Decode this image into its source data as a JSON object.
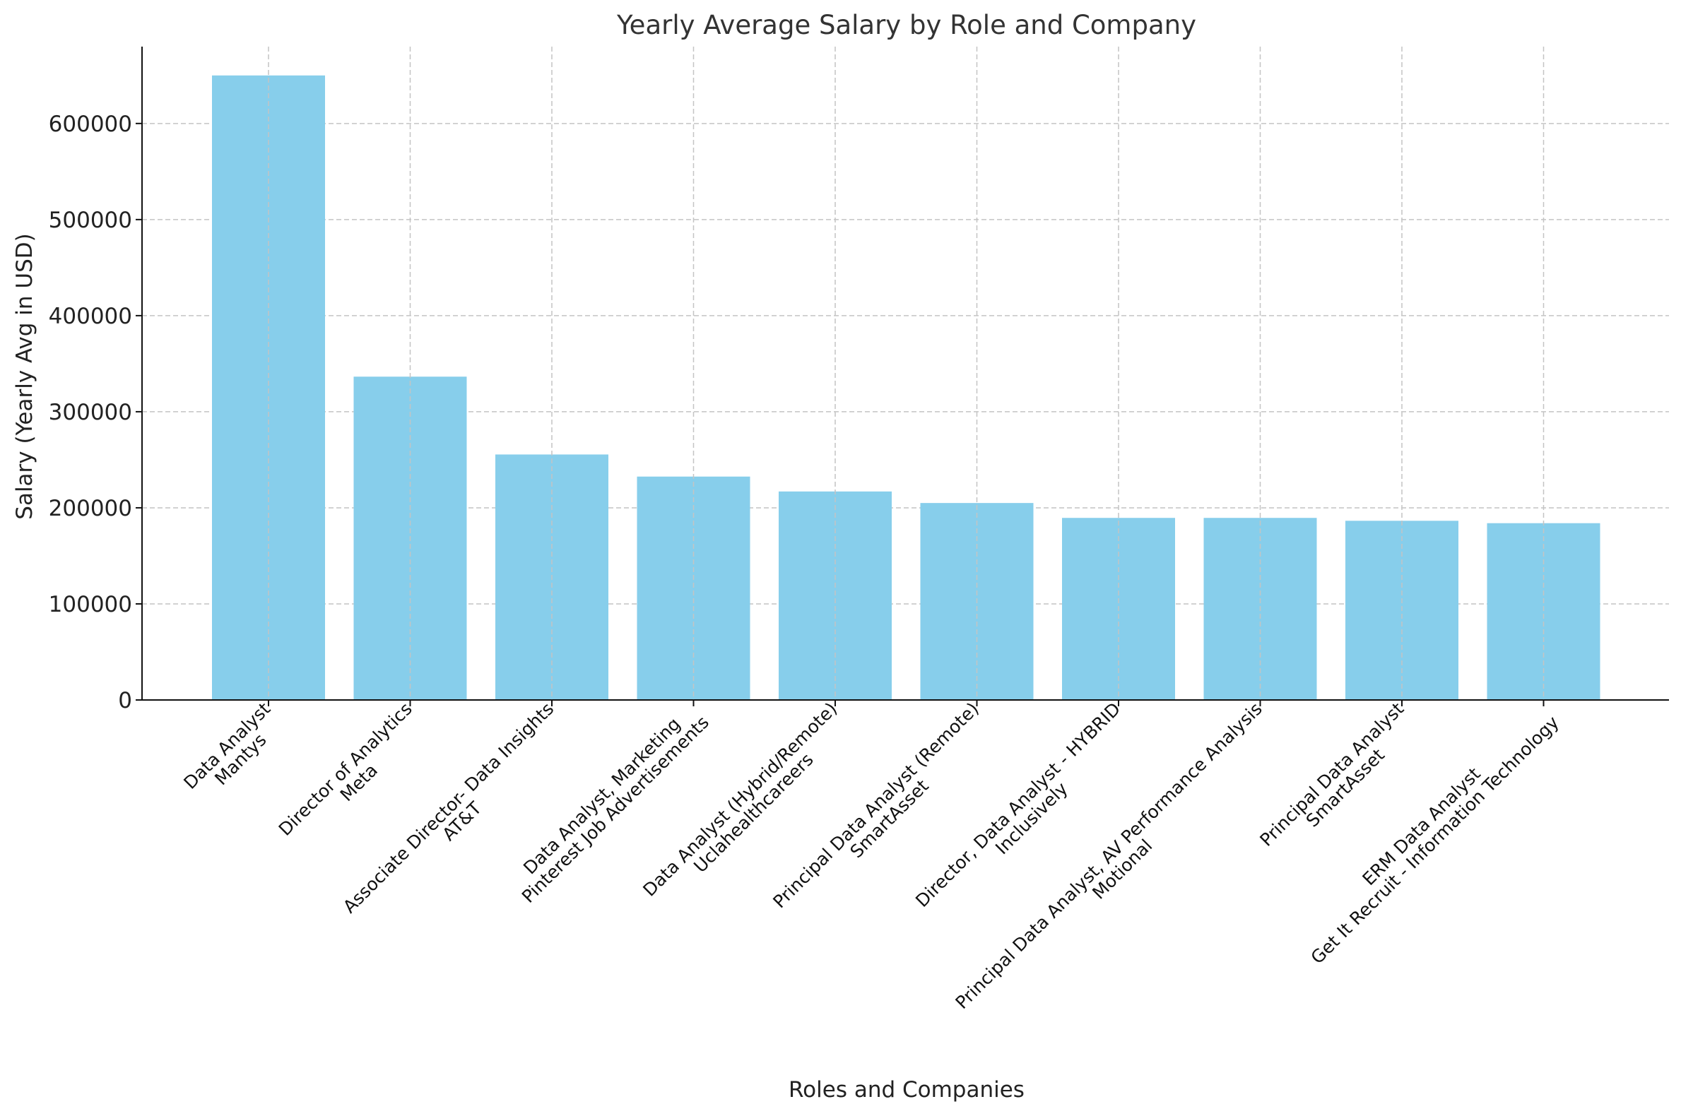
{
  "chart_data": {
    "type": "bar",
    "title": "Yearly Average Salary by Role and Company",
    "xlabel": "Roles and Companies",
    "ylabel": "Salary (Yearly Avg in USD)",
    "ylim": [
      0,
      680000
    ],
    "yticks": [
      0,
      100000,
      200000,
      300000,
      400000,
      500000,
      600000
    ],
    "grid": true,
    "bar_color": "#87CEEB",
    "categories": [
      [
        "Data Analyst",
        "Mantys"
      ],
      [
        "Director of Analytics",
        "Meta"
      ],
      [
        "Associate Director- Data Insights",
        "AT&T"
      ],
      [
        "Data Analyst, Marketing",
        "Pinterest Job Advertisements"
      ],
      [
        "Data Analyst (Hybrid/Remote)",
        "Uclahealthcareers"
      ],
      [
        "Principal Data Analyst (Remote)",
        "SmartAsset"
      ],
      [
        "Director, Data Analyst - HYBRID",
        "Inclusively"
      ],
      [
        "Principal Data Analyst, AV Performance Analysis",
        "Motional"
      ],
      [
        "Principal Data Analyst",
        "SmartAsset"
      ],
      [
        "ERM Data Analyst",
        "Get It Recruit - Information Technology"
      ]
    ],
    "values": [
      650000,
      336500,
      255500,
      232500,
      217000,
      205000,
      189500,
      189500,
      186500,
      184000
    ]
  }
}
